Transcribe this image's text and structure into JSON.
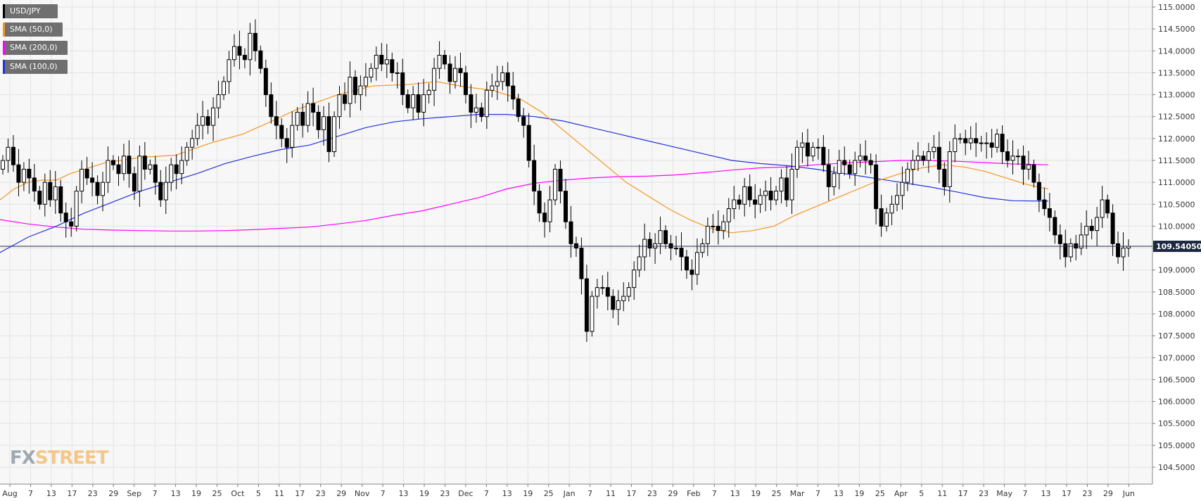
{
  "instrument": "USD/JPY",
  "legend": [
    {
      "label": "USD/JPY",
      "color": "#000000"
    },
    {
      "label": "SMA (50,0)",
      "color": "#f7941d"
    },
    {
      "label": "SMA (200,0)",
      "color": "#ff00ff"
    },
    {
      "label": "SMA (100,0)",
      "color": "#2233dd"
    }
  ],
  "logo": {
    "part1": "FX",
    "part2": "STREET"
  },
  "current_price_label": "109.54050",
  "chart_data": {
    "type": "candlestick",
    "y_ticks": [
      "104.5000",
      "105.0000",
      "105.5000",
      "106.0000",
      "106.5000",
      "107.0000",
      "107.5000",
      "108.0000",
      "108.5000",
      "109.0000",
      "109.5000",
      "110.0000",
      "110.5000",
      "111.0000",
      "111.5000",
      "112.0000",
      "112.5000",
      "113.0000",
      "113.5000",
      "114.0000",
      "114.5000",
      "115.0000"
    ],
    "ylim": [
      104.35,
      115.05
    ],
    "current_price": 109.5405,
    "x_ticks": [
      "Aug",
      "7",
      "13",
      "17",
      "23",
      "29",
      "Sep",
      "7",
      "13",
      "19",
      "25",
      "Oct",
      "5",
      "11",
      "17",
      "23",
      "29",
      "Nov",
      "7",
      "13",
      "19",
      "23",
      "Dec",
      "7",
      "13",
      "19",
      "25",
      "Jan",
      "7",
      "11",
      "17",
      "23",
      "29",
      "Feb",
      "7",
      "13",
      "19",
      "25",
      "Mar",
      "7",
      "13",
      "19",
      "25",
      "Apr",
      "5",
      "11",
      "17",
      "23",
      "May",
      "7",
      "13",
      "17",
      "23",
      "29",
      "Jun"
    ],
    "colors": {
      "up": "#ffffff",
      "down": "#000000",
      "sma50": "#f7941d",
      "sma200": "#ff00ff",
      "sma100": "#2233dd",
      "grid": "#e3e3e3"
    },
    "close": [
      111.5,
      111.8,
      111.4,
      111.0,
      111.3,
      111.1,
      110.8,
      110.5,
      111.0,
      110.6,
      110.9,
      110.3,
      110.1,
      110.0,
      110.8,
      111.3,
      111.1,
      111.0,
      110.7,
      111.0,
      111.5,
      111.4,
      111.2,
      111.6,
      111.2,
      110.8,
      111.6,
      111.3,
      111.4,
      111.0,
      110.6,
      111.0,
      111.4,
      111.2,
      111.5,
      111.8,
      112.0,
      112.3,
      112.5,
      112.3,
      112.7,
      113.0,
      113.3,
      113.8,
      114.1,
      113.9,
      113.8,
      114.4,
      114.0,
      113.6,
      113.0,
      112.5,
      112.3,
      112.0,
      111.8,
      112.3,
      112.6,
      112.3,
      112.8,
      112.6,
      112.2,
      112.5,
      111.7,
      112.5,
      113.0,
      112.8,
      113.4,
      113.0,
      113.2,
      113.4,
      113.6,
      113.9,
      113.7,
      113.8,
      113.5,
      113.5,
      113.0,
      112.7,
      113.0,
      112.6,
      113.0,
      113.1,
      113.6,
      113.9,
      113.7,
      113.3,
      113.6,
      113.5,
      113.0,
      112.6,
      112.7,
      112.5,
      113.1,
      113.2,
      113.3,
      113.5,
      113.2,
      112.9,
      112.5,
      112.3,
      111.5,
      110.8,
      110.3,
      110.1,
      110.6,
      111.3,
      110.8,
      110.1,
      109.6,
      109.5,
      108.8,
      107.6,
      108.4,
      108.6,
      108.6,
      108.4,
      108.1,
      108.3,
      108.4,
      108.6,
      109.0,
      109.3,
      109.7,
      109.5,
      109.6,
      109.9,
      109.6,
      109.5,
      109.5,
      109.3,
      109.0,
      108.9,
      109.4,
      109.6,
      110.0,
      110.0,
      109.9,
      110.1,
      110.4,
      110.6,
      110.5,
      110.9,
      110.6,
      110.5,
      110.7,
      110.8,
      110.6,
      110.8,
      111.1,
      110.6,
      111.3,
      111.8,
      111.9,
      111.6,
      111.8,
      111.8,
      111.4,
      110.9,
      111.2,
      111.5,
      111.4,
      111.2,
      111.5,
      111.6,
      111.5,
      111.4,
      110.4,
      110.0,
      110.3,
      110.5,
      110.7,
      111.0,
      111.3,
      111.5,
      111.6,
      111.5,
      111.7,
      111.8,
      111.3,
      110.9,
      111.7,
      112.0,
      112.0,
      111.9,
      112.0,
      111.9,
      111.9,
      111.9,
      111.8,
      112.1,
      111.7,
      111.5,
      111.6,
      111.6,
      111.3,
      111.4,
      111.0,
      110.6,
      110.4,
      110.2,
      109.8,
      109.6,
      109.3,
      109.6,
      109.5,
      109.8,
      110.0,
      109.9,
      110.2,
      110.6,
      110.3,
      109.6,
      109.3,
      109.5,
      109.54
    ],
    "sma50": [
      [
        -40,
        110.55
      ],
      [
        0,
        110.6
      ],
      [
        20,
        110.85
      ],
      [
        40,
        111.0
      ],
      [
        60,
        111.05
      ],
      [
        80,
        111.05
      ],
      [
        100,
        111.2
      ],
      [
        150,
        111.45
      ],
      [
        200,
        111.57
      ],
      [
        250,
        111.62
      ],
      [
        300,
        111.9
      ],
      [
        345,
        112.1
      ],
      [
        380,
        112.35
      ],
      [
        420,
        112.65
      ],
      [
        480,
        113.0
      ],
      [
        530,
        113.2
      ],
      [
        580,
        113.23
      ],
      [
        620,
        113.3
      ],
      [
        660,
        113.18
      ],
      [
        700,
        113.1
      ],
      [
        740,
        112.9
      ],
      [
        770,
        112.6
      ],
      [
        800,
        112.2
      ],
      [
        830,
        111.8
      ],
      [
        860,
        111.4
      ],
      [
        890,
        111.0
      ],
      [
        920,
        110.7
      ],
      [
        950,
        110.4
      ],
      [
        980,
        110.15
      ],
      [
        1010,
        109.95
      ],
      [
        1040,
        109.85
      ],
      [
        1070,
        109.9
      ],
      [
        1100,
        110.0
      ],
      [
        1130,
        110.25
      ],
      [
        1160,
        110.45
      ],
      [
        1190,
        110.65
      ],
      [
        1220,
        110.85
      ],
      [
        1250,
        111.05
      ],
      [
        1280,
        111.2
      ],
      [
        1310,
        111.33
      ],
      [
        1340,
        111.4
      ],
      [
        1370,
        111.35
      ],
      [
        1400,
        111.25
      ],
      [
        1430,
        111.1
      ],
      [
        1460,
        110.95
      ],
      [
        1490,
        110.85
      ]
    ],
    "sma100": [
      [
        -40,
        109.1
      ],
      [
        0,
        109.4
      ],
      [
        40,
        109.75
      ],
      [
        80,
        110.0
      ],
      [
        120,
        110.3
      ],
      [
        160,
        110.55
      ],
      [
        200,
        110.8
      ],
      [
        240,
        111.0
      ],
      [
        280,
        111.2
      ],
      [
        320,
        111.43
      ],
      [
        360,
        111.6
      ],
      [
        400,
        111.75
      ],
      [
        440,
        111.85
      ],
      [
        480,
        112.05
      ],
      [
        520,
        112.25
      ],
      [
        560,
        112.38
      ],
      [
        600,
        112.45
      ],
      [
        640,
        112.5
      ],
      [
        680,
        112.55
      ],
      [
        720,
        112.55
      ],
      [
        760,
        112.5
      ],
      [
        800,
        112.4
      ],
      [
        840,
        112.25
      ],
      [
        880,
        112.1
      ],
      [
        920,
        111.95
      ],
      [
        960,
        111.8
      ],
      [
        1000,
        111.65
      ],
      [
        1040,
        111.5
      ],
      [
        1080,
        111.43
      ],
      [
        1120,
        111.38
      ],
      [
        1160,
        111.3
      ],
      [
        1200,
        111.2
      ],
      [
        1240,
        111.1
      ],
      [
        1280,
        111.0
      ],
      [
        1320,
        110.9
      ],
      [
        1360,
        110.78
      ],
      [
        1400,
        110.65
      ],
      [
        1440,
        110.58
      ],
      [
        1490,
        110.57
      ]
    ],
    "sma200": [
      [
        -40,
        110.2
      ],
      [
        0,
        110.15
      ],
      [
        40,
        110.05
      ],
      [
        80,
        109.98
      ],
      [
        120,
        109.93
      ],
      [
        160,
        109.91
      ],
      [
        200,
        109.9
      ],
      [
        240,
        109.89
      ],
      [
        280,
        109.89
      ],
      [
        320,
        109.9
      ],
      [
        360,
        109.92
      ],
      [
        400,
        109.95
      ],
      [
        440,
        109.98
      ],
      [
        480,
        110.05
      ],
      [
        520,
        110.13
      ],
      [
        560,
        110.25
      ],
      [
        600,
        110.35
      ],
      [
        640,
        110.5
      ],
      [
        680,
        110.65
      ],
      [
        720,
        110.85
      ],
      [
        760,
        110.98
      ],
      [
        800,
        111.05
      ],
      [
        840,
        111.1
      ],
      [
        880,
        111.13
      ],
      [
        920,
        111.14
      ],
      [
        960,
        111.17
      ],
      [
        1000,
        111.22
      ],
      [
        1040,
        111.28
      ],
      [
        1080,
        111.33
      ],
      [
        1120,
        111.35
      ],
      [
        1160,
        111.4
      ],
      [
        1200,
        111.44
      ],
      [
        1240,
        111.47
      ],
      [
        1280,
        111.5
      ],
      [
        1320,
        111.5
      ],
      [
        1360,
        111.48
      ],
      [
        1400,
        111.45
      ],
      [
        1440,
        111.42
      ],
      [
        1490,
        111.4
      ]
    ]
  }
}
